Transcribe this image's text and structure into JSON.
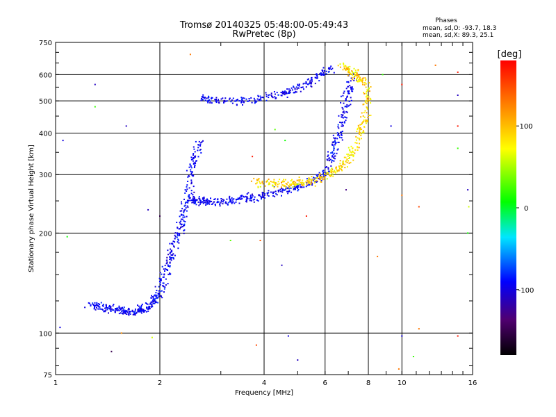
{
  "chart_data": {
    "type": "scatter",
    "title": "Tromsø 20140325 05:48:00-05:49:43",
    "subtitle": "RwPretec (8p)",
    "phases": {
      "heading": "Phases",
      "line_o": "mean, sd,O: -93.7, 18.3",
      "line_x": "mean, sd,X:  89.3, 25.1"
    },
    "xlabel": "Frequency [MHz]",
    "ylabel": "Stationary phase Virtual Height [km]",
    "x_scale": "log",
    "y_scale": "log",
    "xlim": [
      1,
      16
    ],
    "ylim": [
      75,
      750
    ],
    "x_ticks": [
      1,
      2,
      4,
      6,
      8,
      10,
      16
    ],
    "x_tick_labels": [
      "1",
      "2",
      "4",
      "6",
      "8",
      "10",
      "16"
    ],
    "y_ticks": [
      75,
      100,
      200,
      300,
      400,
      500,
      600,
      750
    ],
    "y_tick_labels": [
      "75",
      "100",
      "200",
      "300",
      "400",
      "500",
      "600",
      "750"
    ],
    "grid": true,
    "colorbar": {
      "label": "[deg]",
      "range": [
        -180,
        180
      ],
      "ticks": [
        100,
        0,
        -100
      ],
      "tick_labels": [
        "100",
        "0",
        "-100"
      ]
    },
    "series": [
      {
        "mode": "O",
        "mean_phase": -93.7,
        "segments": [
          {
            "x": [
              1.25,
              1.35,
              1.45,
              1.55,
              1.65,
              1.75,
              1.85,
              1.92,
              1.98,
              2.05,
              2.12,
              2.2,
              2.3,
              2.38,
              2.45,
              2.52,
              2.6
            ],
            "y": [
              122,
              120,
              118,
              117,
              116,
              117,
              119,
              124,
              132,
              148,
              165,
              185,
              210,
              240,
              280,
              330,
              380
            ]
          },
          {
            "x": [
              2.45,
              2.55,
              2.7,
              2.9,
              3.2,
              3.5,
              3.9,
              4.3,
              4.8,
              5.3,
              5.8,
              6.2
            ],
            "y": [
              255,
              250,
              248,
              248,
              250,
              253,
              258,
              264,
              272,
              282,
              295,
              315
            ]
          },
          {
            "x": [
              6.2,
              6.4,
              6.6,
              6.8,
              7.0,
              7.2
            ],
            "y": [
              330,
              360,
              400,
              460,
              530,
              600
            ]
          },
          {
            "x": [
              2.6,
              2.9,
              3.3,
              3.8,
              4.3,
              4.8,
              5.3,
              5.8,
              6.3
            ],
            "y": [
              510,
              500,
              498,
              505,
              518,
              535,
              560,
              600,
              630
            ]
          }
        ]
      },
      {
        "mode": "X",
        "mean_phase": 89.3,
        "segments": [
          {
            "x": [
              3.8,
              4.2,
              4.6,
              5.0,
              5.5,
              6.0,
              6.5,
              7.0,
              7.4,
              7.7,
              7.9,
              8.0
            ],
            "y": [
              285,
              283,
              282,
              283,
              287,
              295,
              310,
              335,
              370,
              420,
              490,
              560
            ]
          },
          {
            "x": [
              6.7,
              7.1,
              7.5,
              7.9
            ],
            "y": [
              640,
              615,
              585,
              560
            ]
          }
        ]
      }
    ],
    "scatter_noise": [
      {
        "x": 1.03,
        "y": 104,
        "phase": -100
      },
      {
        "x": 1.05,
        "y": 380,
        "phase": -100
      },
      {
        "x": 1.08,
        "y": 195,
        "phase": 10
      },
      {
        "x": 1.3,
        "y": 560,
        "phase": -110
      },
      {
        "x": 1.3,
        "y": 480,
        "phase": 20
      },
      {
        "x": 1.45,
        "y": 88,
        "phase": -150
      },
      {
        "x": 1.55,
        "y": 100,
        "phase": 120
      },
      {
        "x": 1.6,
        "y": 420,
        "phase": -110
      },
      {
        "x": 1.85,
        "y": 235,
        "phase": -110
      },
      {
        "x": 1.9,
        "y": 97,
        "phase": 60
      },
      {
        "x": 2.0,
        "y": 225,
        "phase": -150
      },
      {
        "x": 2.45,
        "y": 690,
        "phase": 130
      },
      {
        "x": 3.2,
        "y": 190,
        "phase": 30
      },
      {
        "x": 3.7,
        "y": 340,
        "phase": 170
      },
      {
        "x": 3.8,
        "y": 92,
        "phase": 150
      },
      {
        "x": 3.9,
        "y": 190,
        "phase": 140
      },
      {
        "x": 4.3,
        "y": 410,
        "phase": 30
      },
      {
        "x": 4.5,
        "y": 160,
        "phase": -110
      },
      {
        "x": 4.6,
        "y": 380,
        "phase": 10
      },
      {
        "x": 4.7,
        "y": 98,
        "phase": -100
      },
      {
        "x": 5.0,
        "y": 83,
        "phase": -110
      },
      {
        "x": 5.3,
        "y": 225,
        "phase": 170
      },
      {
        "x": 6.9,
        "y": 270,
        "phase": -130
      },
      {
        "x": 8.5,
        "y": 170,
        "phase": 130
      },
      {
        "x": 8.8,
        "y": 600,
        "phase": 20
      },
      {
        "x": 9.3,
        "y": 420,
        "phase": -100
      },
      {
        "x": 9.8,
        "y": 78,
        "phase": 130
      },
      {
        "x": 10.0,
        "y": 98,
        "phase": -100
      },
      {
        "x": 10.0,
        "y": 260,
        "phase": 130
      },
      {
        "x": 10.0,
        "y": 560,
        "phase": 170
      },
      {
        "x": 10.8,
        "y": 85,
        "phase": 20
      },
      {
        "x": 11.2,
        "y": 240,
        "phase": 150
      },
      {
        "x": 11.2,
        "y": 103,
        "phase": 130
      },
      {
        "x": 12.5,
        "y": 640,
        "phase": 130
      },
      {
        "x": 14.5,
        "y": 520,
        "phase": -110
      },
      {
        "x": 14.5,
        "y": 420,
        "phase": 170
      },
      {
        "x": 14.5,
        "y": 360,
        "phase": 20
      },
      {
        "x": 14.5,
        "y": 98,
        "phase": 170
      },
      {
        "x": 14.5,
        "y": 610,
        "phase": 170
      },
      {
        "x": 15.5,
        "y": 270,
        "phase": -110
      },
      {
        "x": 15.5,
        "y": 200,
        "phase": 10
      },
      {
        "x": 15.6,
        "y": 240,
        "phase": 60
      }
    ]
  }
}
